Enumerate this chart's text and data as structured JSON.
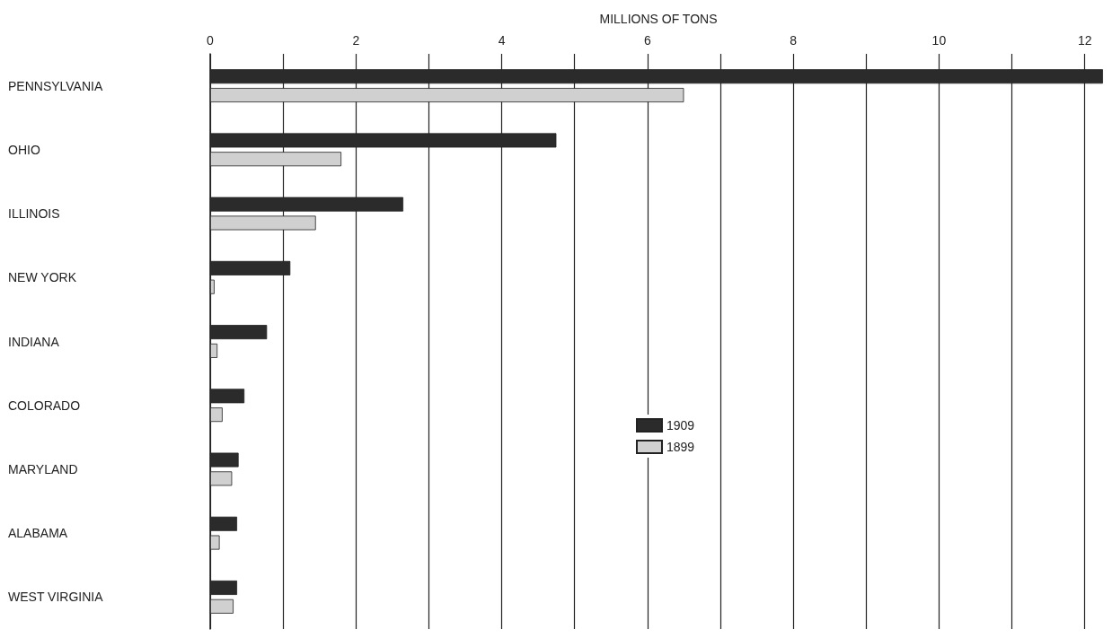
{
  "chart_data": {
    "type": "bar",
    "orientation": "horizontal",
    "xlabel": "MILLIONS OF TONS",
    "categories": [
      "PENNSYLVANIA",
      "OHIO",
      "ILLINOIS",
      "NEW YORK",
      "INDIANA",
      "COLORADO",
      "MARYLAND",
      "ALABAMA",
      "WEST VIRGINIA"
    ],
    "series": [
      {
        "name": "1909",
        "color": "#2b2b2b",
        "values": [
          12.25,
          4.75,
          2.65,
          1.1,
          0.78,
          0.47,
          0.39,
          0.37,
          0.37
        ]
      },
      {
        "name": "1899",
        "color": "#d0d0d0",
        "values": [
          6.5,
          1.8,
          1.45,
          0.06,
          0.1,
          0.17,
          0.3,
          0.13,
          0.32
        ]
      }
    ],
    "xlim": [
      0,
      12.3
    ],
    "xticks": [
      0,
      {
        "value": 1,
        "label": null
      },
      2,
      {
        "value": 3,
        "label": null
      },
      4,
      {
        "value": 5,
        "label": null
      },
      6,
      {
        "value": 7,
        "label": null
      },
      8,
      {
        "value": 9,
        "label": null
      },
      10,
      {
        "value": 11,
        "label": null
      },
      12
    ],
    "grid": "x",
    "legend": "center"
  }
}
